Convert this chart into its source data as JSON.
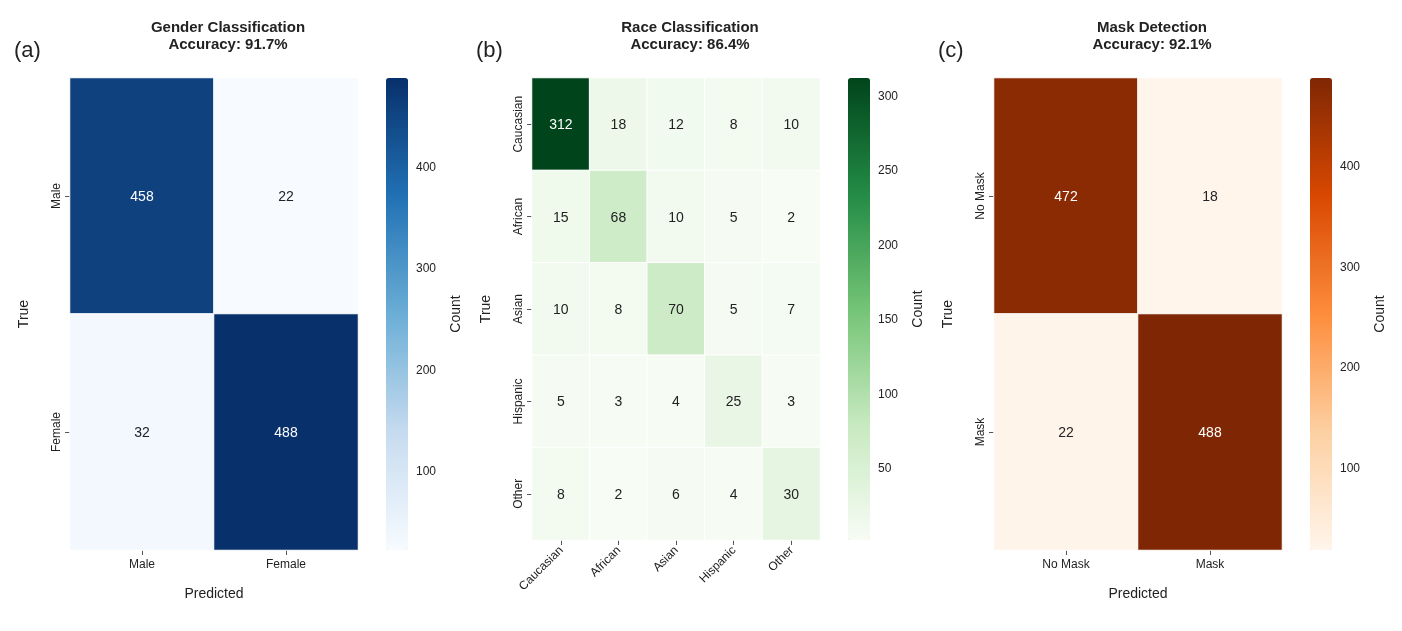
{
  "chart_data": [
    {
      "type": "heatmap",
      "title": "Gender Classification",
      "subtitle": "Accuracy: 91.7%",
      "xlabel": "Predicted",
      "ylabel": "True",
      "clabel": "Count",
      "annotations": [
        "(a)"
      ],
      "categories": [
        "Male",
        "Female"
      ],
      "y_categories": [
        "Male",
        "Female"
      ],
      "cells": [
        [
          458,
          22
        ],
        [
          32,
          488
        ]
      ],
      "colors": [
        "#f7fbff",
        "#c6dbef",
        "#6baed6",
        "#2171b5",
        "#08306b"
      ],
      "clim": [
        22,
        488
      ],
      "cticks": [
        100,
        200,
        300,
        400
      ],
      "data_labels": true
    },
    {
      "type": "heatmap",
      "title": "Race Classification",
      "subtitle": "Accuracy: 86.4%",
      "ylabel": "True",
      "clabel": "Count",
      "annotations": [
        "(b)"
      ],
      "categories": [
        "Caucasian",
        "African",
        "Asian",
        "Hispanic",
        "Other"
      ],
      "y_categories": [
        "Caucasian",
        "African",
        "Asian",
        "Hispanic",
        "Other"
      ],
      "cells": [
        [
          312,
          18,
          12,
          8,
          10
        ],
        [
          15,
          68,
          10,
          5,
          2
        ],
        [
          10,
          8,
          70,
          5,
          7
        ],
        [
          5,
          3,
          4,
          25,
          3
        ],
        [
          8,
          2,
          6,
          4,
          30
        ]
      ],
      "colors": [
        "#f7fcf5",
        "#c7e9c0",
        "#74c476",
        "#238b45",
        "#00441b"
      ],
      "clim": [
        2,
        312
      ],
      "cticks": [
        50,
        100,
        150,
        200,
        250,
        300
      ],
      "data_labels": true
    },
    {
      "type": "heatmap",
      "title": "Mask Detection",
      "subtitle": "Accuracy: 92.1%",
      "xlabel": "Predicted",
      "ylabel": "True",
      "clabel": "Count",
      "annotations": [
        "(c)"
      ],
      "categories": [
        "No Mask",
        "Mask"
      ],
      "y_categories": [
        "No Mask",
        "Mask"
      ],
      "cells": [
        [
          472,
          18
        ],
        [
          22,
          488
        ]
      ],
      "colors": [
        "#fff5eb",
        "#fdd0a2",
        "#fd8d3c",
        "#d94801",
        "#7f2704"
      ],
      "clim": [
        18,
        488
      ],
      "cticks": [
        100,
        200,
        300,
        400
      ],
      "data_labels": true
    }
  ]
}
